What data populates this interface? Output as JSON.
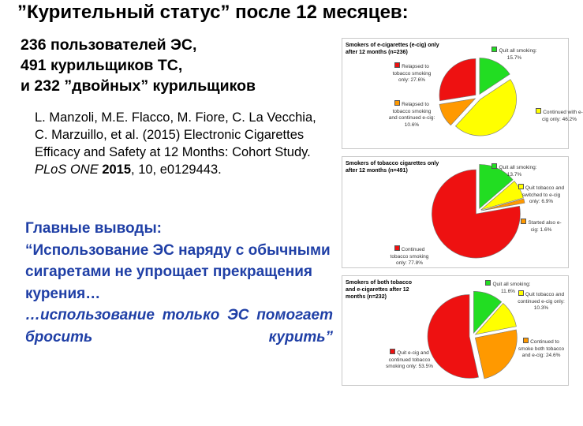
{
  "title": "”Курительный статус” после 12 месяцев:",
  "subtitle": [
    "236 пользователей ЭС,",
    "491 курильщиков ТС,",
    "и 232 ”двойных” курильщиков"
  ],
  "reference": {
    "authors": "L. Manzoli, M.E. Flacco, M. Fiore, C. La Vecchia, C. Marzuillo, et al. (2015) Electronic Cigarettes Efficacy and Safety at 12 Months: Cohort Study.",
    "journal": "PLoS ONE",
    "year": "2015",
    "rest": ", 10, e0129443."
  },
  "conclusions": [
    "Главные выводы:",
    "“Использование ЭС наряду с обычными сигаретами не упрощает прекращения курения…",
    "…использование только ЭС помогает бросить курить”"
  ],
  "colors": {
    "green": "#22dd22",
    "yellow": "#ffff00",
    "orange": "#ff9900",
    "red": "#ee1111",
    "conclusion_text": "#1f3fa6"
  },
  "chart_data": [
    {
      "type": "pie",
      "title": "Smokers of e-cigarettes (e-cig) only after 12 months (n=236)",
      "labels": [
        "Quit all smoking: 15.7%",
        "Continued with e-cig only: 46.2%",
        "Relapsed to tobacco smoking and continued e-cig: 10.6%",
        "Relapsed to tobacco smoking only: 27.6%"
      ],
      "values": [
        15.7,
        46.2,
        10.6,
        27.6
      ],
      "colors": [
        "#22dd22",
        "#ffff00",
        "#ff9900",
        "#ee1111"
      ]
    },
    {
      "type": "pie",
      "title": "Smokers of tobacco cigarettes only after 12 months (n=491)",
      "labels": [
        "Quit all smoking: 13.7%",
        "Quit tobacco and switched to e-cig only: 6.9%",
        "Started also e-cig: 1.6%",
        "Continued tobacco smoking only: 77.8%"
      ],
      "values": [
        13.7,
        6.9,
        1.6,
        77.8
      ],
      "colors": [
        "#22dd22",
        "#ffff00",
        "#ff9900",
        "#ee1111"
      ]
    },
    {
      "type": "pie",
      "title": "Smokers of both tobacco and e-cigarettes after 12 months (n=232)",
      "labels": [
        "Quit all smoking: 11.6%",
        "Quit tobacco and continued e-cig only: 10.3%",
        "Continued to smoke both tobacco and e-cig: 24.6%",
        "Quit e-cig and continued tobacco smoking only: 53.5%"
      ],
      "values": [
        11.6,
        10.3,
        24.6,
        53.5
      ],
      "colors": [
        "#22dd22",
        "#ffff00",
        "#ff9900",
        "#ee1111"
      ]
    }
  ]
}
